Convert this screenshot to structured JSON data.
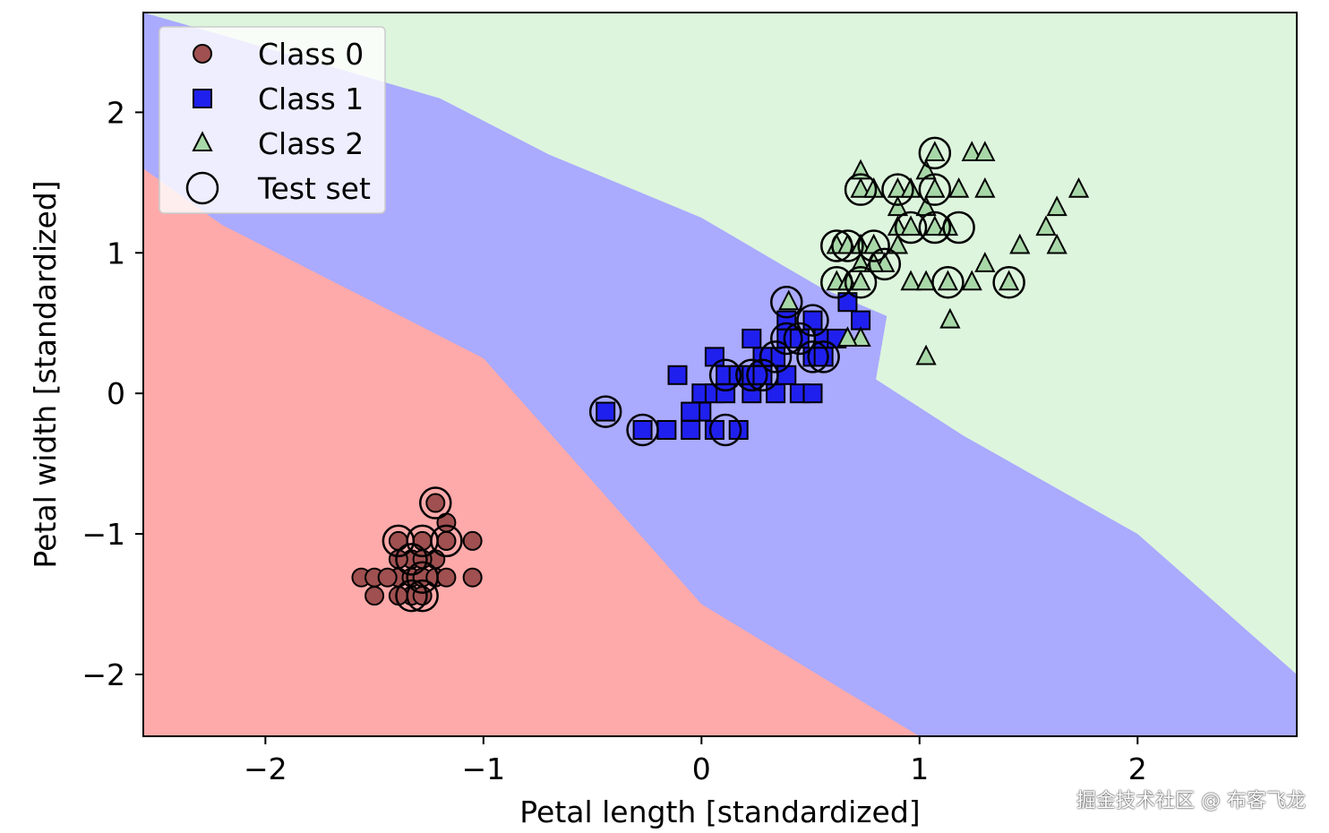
{
  "chart_data": {
    "type": "scatter",
    "xlabel": "Petal length [standardized]",
    "ylabel": "Petal width [standardized]",
    "xlim": [
      -2.56,
      2.73
    ],
    "ylim": [
      -2.44,
      2.71
    ],
    "xticks": [
      -2,
      -1,
      0,
      1,
      2
    ],
    "yticks": [
      -2,
      -1,
      0,
      1,
      2
    ],
    "xtick_labels": [
      "−2",
      "−1",
      "0",
      "1",
      "2"
    ],
    "ytick_labels": [
      "−2",
      "−1",
      "0",
      "1",
      "2"
    ],
    "grid": false,
    "legend_position": "top-left",
    "background_regions": [
      {
        "class": "Class 0",
        "color": "#ffaaaa",
        "boundary_with_next": [
          [
            -2.56,
            1.6
          ],
          [
            -2.2,
            1.2
          ],
          [
            -1.0,
            0.25
          ],
          [
            0.0,
            -1.5
          ],
          [
            1.0,
            -2.44
          ]
        ]
      },
      {
        "class": "Class 1",
        "color": "#aaaaff",
        "boundary_with_next": [
          [
            -2.56,
            2.71
          ],
          [
            -2.2,
            2.55
          ],
          [
            -1.2,
            2.1
          ],
          [
            -0.7,
            1.7
          ],
          [
            0.0,
            1.25
          ],
          [
            0.55,
            0.75
          ],
          [
            0.85,
            0.55
          ],
          [
            0.8,
            0.1
          ],
          [
            1.2,
            -0.3
          ],
          [
            2.0,
            -1.0
          ],
          [
            2.73,
            -2.0
          ]
        ]
      },
      {
        "class": "Class 2",
        "color": "#ddf5dd"
      }
    ],
    "series": [
      {
        "name": "Class 0",
        "marker": "circle",
        "color": "#a05050",
        "points": [
          [
            -1.22,
            -0.78
          ],
          [
            -1.17,
            -0.92
          ],
          [
            -1.39,
            -1.05
          ],
          [
            -1.28,
            -1.05
          ],
          [
            -1.17,
            -1.05
          ],
          [
            -1.05,
            -1.05
          ],
          [
            -1.33,
            -1.18
          ],
          [
            -1.22,
            -1.18
          ],
          [
            -1.17,
            -1.05
          ],
          [
            -1.39,
            -1.31
          ],
          [
            -1.33,
            -1.31
          ],
          [
            -1.28,
            -1.31
          ],
          [
            -1.22,
            -1.31
          ],
          [
            -1.17,
            -1.31
          ],
          [
            -1.05,
            -1.31
          ],
          [
            -1.56,
            -1.31
          ],
          [
            -1.5,
            -1.31
          ],
          [
            -1.44,
            -1.31
          ],
          [
            -1.33,
            -1.44
          ],
          [
            -1.28,
            -1.44
          ],
          [
            -1.39,
            -1.44
          ],
          [
            -1.5,
            -1.44
          ],
          [
            -1.39,
            -1.18
          ],
          [
            -1.28,
            -1.18
          ]
        ]
      },
      {
        "name": "Class 1",
        "marker": "square",
        "color": "#2020ee",
        "points": [
          [
            -0.44,
            -0.13
          ],
          [
            -0.27,
            -0.26
          ],
          [
            -0.16,
            -0.26
          ],
          [
            -0.05,
            -0.26
          ],
          [
            0.06,
            -0.26
          ],
          [
            0.17,
            -0.26
          ],
          [
            -0.11,
            0.13
          ],
          [
            0.0,
            0.0
          ],
          [
            0.0,
            -0.13
          ],
          [
            0.06,
            0.0
          ],
          [
            0.11,
            0.13
          ],
          [
            0.17,
            0.13
          ],
          [
            0.23,
            0.0
          ],
          [
            0.23,
            0.13
          ],
          [
            0.28,
            0.13
          ],
          [
            0.34,
            0.0
          ],
          [
            0.39,
            0.13
          ],
          [
            0.45,
            0.0
          ],
          [
            0.51,
            0.0
          ],
          [
            0.06,
            0.26
          ],
          [
            0.23,
            0.39
          ],
          [
            0.34,
            0.26
          ],
          [
            0.39,
            0.39
          ],
          [
            0.39,
            0.52
          ],
          [
            0.45,
            0.39
          ],
          [
            0.51,
            0.26
          ],
          [
            0.51,
            0.52
          ],
          [
            0.56,
            0.39
          ],
          [
            0.62,
            0.39
          ],
          [
            0.67,
            0.65
          ],
          [
            0.73,
            0.52
          ],
          [
            0.56,
            0.26
          ],
          [
            -0.05,
            -0.13
          ],
          [
            0.11,
            0.0
          ],
          [
            0.28,
            0.26
          ]
        ]
      },
      {
        "name": "Class 2",
        "marker": "triangle",
        "color": "#a8d8a8",
        "points": [
          [
            1.03,
            0.26
          ],
          [
            1.14,
            0.52
          ],
          [
            1.07,
            1.71
          ],
          [
            1.24,
            1.71
          ],
          [
            1.3,
            1.71
          ],
          [
            0.73,
            1.58
          ],
          [
            1.03,
            1.58
          ],
          [
            1.73,
            1.45
          ],
          [
            0.73,
            1.45
          ],
          [
            0.79,
            1.45
          ],
          [
            0.9,
            1.45
          ],
          [
            0.96,
            1.45
          ],
          [
            1.07,
            1.45
          ],
          [
            1.18,
            1.45
          ],
          [
            1.3,
            1.45
          ],
          [
            1.63,
            1.32
          ],
          [
            1.03,
            1.32
          ],
          [
            0.9,
            1.18
          ],
          [
            0.96,
            1.18
          ],
          [
            1.07,
            1.18
          ],
          [
            1.13,
            1.18
          ],
          [
            1.58,
            1.18
          ],
          [
            0.62,
            1.05
          ],
          [
            0.67,
            1.05
          ],
          [
            0.73,
            1.05
          ],
          [
            0.79,
            1.05
          ],
          [
            0.9,
            1.05
          ],
          [
            1.46,
            1.05
          ],
          [
            1.63,
            1.05
          ],
          [
            0.73,
            0.92
          ],
          [
            0.84,
            0.92
          ],
          [
            1.3,
            0.92
          ],
          [
            0.62,
            0.79
          ],
          [
            0.67,
            0.79
          ],
          [
            0.73,
            0.79
          ],
          [
            0.96,
            0.79
          ],
          [
            1.03,
            0.79
          ],
          [
            1.13,
            0.79
          ],
          [
            1.24,
            0.79
          ],
          [
            1.41,
            0.79
          ],
          [
            0.4,
            0.65
          ],
          [
            0.73,
            0.39
          ],
          [
            0.67,
            0.39
          ],
          [
            0.9,
            1.32
          ],
          [
            0.79,
            0.92
          ]
        ]
      },
      {
        "name": "Test set",
        "marker": "hollow-circle",
        "color": "#000000",
        "points": [
          [
            -1.22,
            -0.78
          ],
          [
            -1.39,
            -1.05
          ],
          [
            -1.28,
            -1.05
          ],
          [
            -1.17,
            -1.05
          ],
          [
            -1.33,
            -1.18
          ],
          [
            -1.28,
            -1.31
          ],
          [
            -1.33,
            -1.44
          ],
          [
            -1.28,
            -1.44
          ],
          [
            -0.44,
            -0.13
          ],
          [
            -0.27,
            -0.26
          ],
          [
            0.11,
            -0.26
          ],
          [
            0.11,
            0.13
          ],
          [
            0.23,
            0.13
          ],
          [
            0.28,
            0.13
          ],
          [
            0.34,
            0.26
          ],
          [
            0.39,
            0.39
          ],
          [
            0.39,
            0.65
          ],
          [
            0.45,
            0.39
          ],
          [
            0.51,
            0.52
          ],
          [
            0.51,
            0.26
          ],
          [
            0.56,
            0.26
          ],
          [
            0.62,
            0.79
          ],
          [
            0.62,
            1.05
          ],
          [
            0.67,
            1.05
          ],
          [
            0.79,
            1.05
          ],
          [
            0.73,
            0.79
          ],
          [
            0.84,
            0.92
          ],
          [
            0.73,
            1.45
          ],
          [
            0.9,
            1.45
          ],
          [
            1.07,
            1.45
          ],
          [
            1.07,
            1.71
          ],
          [
            0.96,
            1.18
          ],
          [
            1.07,
            1.18
          ],
          [
            1.18,
            1.18
          ],
          [
            1.13,
            0.79
          ],
          [
            1.41,
            0.79
          ]
        ]
      }
    ],
    "legend": [
      {
        "label": "Class 0",
        "marker": "circle",
        "color": "#a05050"
      },
      {
        "label": "Class 1",
        "marker": "square",
        "color": "#2020ee"
      },
      {
        "label": "Class 2",
        "marker": "triangle",
        "color": "#a8d8a8"
      },
      {
        "label": "Test set",
        "marker": "hollow-circle",
        "color": "#000000"
      }
    ]
  },
  "watermark": "掘金技术社区 @ 布客飞龙"
}
